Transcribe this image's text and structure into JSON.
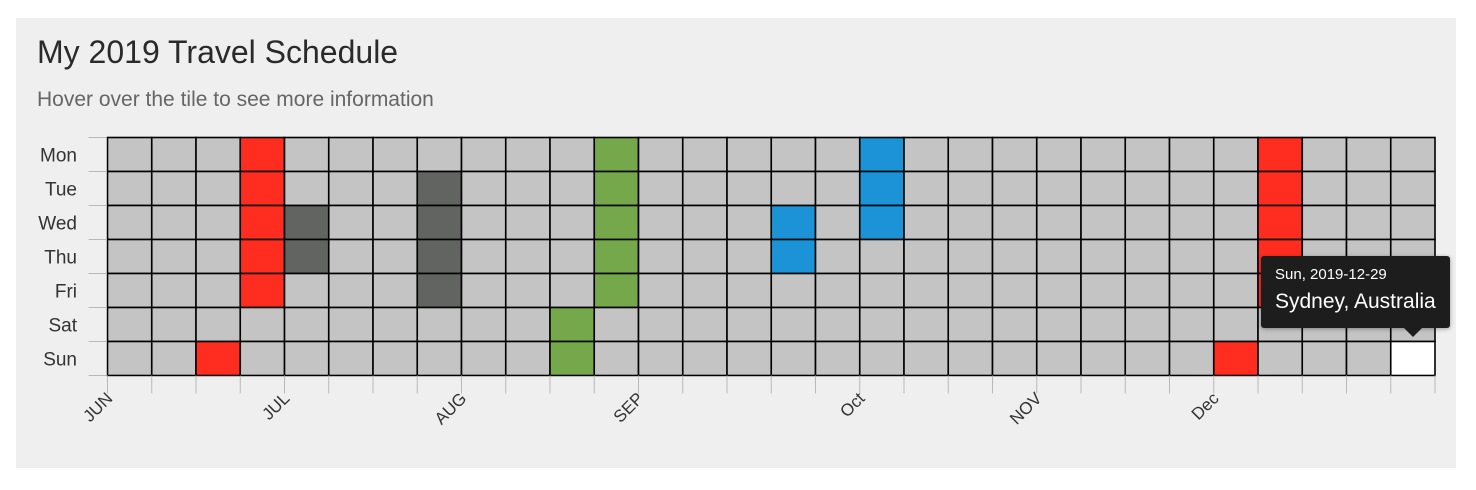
{
  "header": {
    "title": "My 2019 Travel Schedule",
    "subtitle": "Hover over the tile to see more information"
  },
  "chart_data": {
    "type": "heatmap",
    "title": "My 2019 Travel Schedule",
    "days": [
      "Mon",
      "Tue",
      "Wed",
      "Thu",
      "Fri",
      "Sat",
      "Sun"
    ],
    "months": [
      {
        "label": "JUN",
        "week": 0
      },
      {
        "label": "JUL",
        "week": 4
      },
      {
        "label": "AUG",
        "week": 8
      },
      {
        "label": "SEP",
        "week": 12
      },
      {
        "label": "Oct",
        "week": 17
      },
      {
        "label": "NOV",
        "week": 21
      },
      {
        "label": "Dec",
        "week": 25
      }
    ],
    "week_count": 30,
    "colors": {
      "empty": "#c4c4c4",
      "red": "#ff2d20",
      "gray": "#626462",
      "green": "#74a84b",
      "blue": "#1b93d6",
      "highlight": "#ffffff",
      "grid": "#000000"
    },
    "tiles": [
      {
        "week": 2,
        "day": 6,
        "color": "red"
      },
      {
        "week": 3,
        "day": 0,
        "color": "red"
      },
      {
        "week": 3,
        "day": 1,
        "color": "red"
      },
      {
        "week": 3,
        "day": 2,
        "color": "red"
      },
      {
        "week": 3,
        "day": 3,
        "color": "red"
      },
      {
        "week": 3,
        "day": 4,
        "color": "red"
      },
      {
        "week": 4,
        "day": 2,
        "color": "gray"
      },
      {
        "week": 4,
        "day": 3,
        "color": "gray"
      },
      {
        "week": 7,
        "day": 1,
        "color": "gray"
      },
      {
        "week": 7,
        "day": 2,
        "color": "gray"
      },
      {
        "week": 7,
        "day": 3,
        "color": "gray"
      },
      {
        "week": 7,
        "day": 4,
        "color": "gray"
      },
      {
        "week": 10,
        "day": 5,
        "color": "green"
      },
      {
        "week": 10,
        "day": 6,
        "color": "green"
      },
      {
        "week": 11,
        "day": 0,
        "color": "green"
      },
      {
        "week": 11,
        "day": 1,
        "color": "green"
      },
      {
        "week": 11,
        "day": 2,
        "color": "green"
      },
      {
        "week": 11,
        "day": 3,
        "color": "green"
      },
      {
        "week": 11,
        "day": 4,
        "color": "green"
      },
      {
        "week": 15,
        "day": 2,
        "color": "blue"
      },
      {
        "week": 15,
        "day": 3,
        "color": "blue"
      },
      {
        "week": 17,
        "day": 0,
        "color": "blue"
      },
      {
        "week": 17,
        "day": 1,
        "color": "blue"
      },
      {
        "week": 17,
        "day": 2,
        "color": "blue"
      },
      {
        "week": 25,
        "day": 6,
        "color": "red"
      },
      {
        "week": 26,
        "day": 0,
        "color": "red"
      },
      {
        "week": 26,
        "day": 1,
        "color": "red"
      },
      {
        "week": 26,
        "day": 2,
        "color": "red"
      },
      {
        "week": 26,
        "day": 3,
        "color": "red"
      },
      {
        "week": 26,
        "day": 4,
        "color": "red"
      },
      {
        "week": 29,
        "day": 6,
        "color": "highlight"
      }
    ],
    "tooltip": {
      "week": 29,
      "day": 6,
      "date": "Sun, 2019-12-29",
      "location": "Sydney, Australia"
    }
  }
}
